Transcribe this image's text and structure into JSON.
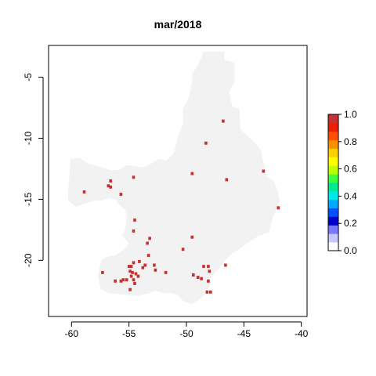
{
  "chart_data": {
    "type": "heatmap",
    "title": "mar/2018",
    "xlabel": "",
    "ylabel": "",
    "xlim": [
      -62,
      -39.5
    ],
    "ylim": [
      -24.6,
      -2.4
    ],
    "x_ticks": [
      -60,
      -55,
      -50,
      -45,
      -40
    ],
    "y_ticks": [
      -5,
      -10,
      -15,
      -20
    ],
    "land_color": "#f2f2f2",
    "legend": {
      "placement": "right",
      "range": [
        0.0,
        1.0
      ],
      "ticks": [
        "0.0",
        "0.2",
        "0.4",
        "0.6",
        "0.8",
        "1.0"
      ],
      "colors": [
        "#ffffff",
        "#c8c8ff",
        "#7a7aff",
        "#0000c8",
        "#0050ff",
        "#00aaff",
        "#00e8e8",
        "#00e890",
        "#40ff40",
        "#c0ff00",
        "#ffff00",
        "#ffd000",
        "#ff9000",
        "#ff5000",
        "#e82000",
        "#c83030"
      ]
    },
    "grid": false,
    "region_outline": [
      [
        -48.5,
        -2.9
      ],
      [
        -46.7,
        -2.9
      ],
      [
        -46.7,
        -3.6
      ],
      [
        -45.8,
        -3.8
      ],
      [
        -45.8,
        -5.4
      ],
      [
        -46.3,
        -6.2
      ],
      [
        -46.0,
        -7.4
      ],
      [
        -45.4,
        -7.6
      ],
      [
        -45.3,
        -9.3
      ],
      [
        -44.2,
        -10.2
      ],
      [
        -43.5,
        -11.0
      ],
      [
        -43.3,
        -12.0
      ],
      [
        -43.0,
        -13.2
      ],
      [
        -42.4,
        -13.5
      ],
      [
        -42.1,
        -14.2
      ],
      [
        -41.9,
        -15.0
      ],
      [
        -42.2,
        -15.9
      ],
      [
        -42.5,
        -16.5
      ],
      [
        -42.8,
        -17.7
      ],
      [
        -43.7,
        -18.0
      ],
      [
        -44.4,
        -18.4
      ],
      [
        -45.3,
        -19.0
      ],
      [
        -46.1,
        -19.5
      ],
      [
        -46.6,
        -20.0
      ],
      [
        -47.0,
        -20.5
      ],
      [
        -47.5,
        -21.0
      ],
      [
        -47.9,
        -21.5
      ],
      [
        -48.0,
        -22.2
      ],
      [
        -48.4,
        -22.8
      ],
      [
        -49.0,
        -23.3
      ],
      [
        -49.5,
        -23.6
      ],
      [
        -50.2,
        -23.4
      ],
      [
        -50.7,
        -22.9
      ],
      [
        -51.2,
        -22.7
      ],
      [
        -51.9,
        -22.7
      ],
      [
        -52.7,
        -22.5
      ],
      [
        -53.2,
        -22.7
      ],
      [
        -54.4,
        -22.9
      ],
      [
        -55.5,
        -22.8
      ],
      [
        -56.8,
        -22.7
      ],
      [
        -57.5,
        -22.3
      ],
      [
        -57.7,
        -21.2
      ],
      [
        -57.4,
        -20.0
      ],
      [
        -56.9,
        -19.7
      ],
      [
        -56.2,
        -19.6
      ],
      [
        -55.3,
        -19.0
      ],
      [
        -55.0,
        -18.6
      ],
      [
        -55.6,
        -18.0
      ],
      [
        -55.3,
        -17.4
      ],
      [
        -55.2,
        -16.4
      ],
      [
        -55.3,
        -15.9
      ],
      [
        -55.8,
        -15.5
      ],
      [
        -56.1,
        -15.1
      ],
      [
        -56.6,
        -14.9
      ],
      [
        -57.3,
        -15.1
      ],
      [
        -58.0,
        -15.1
      ],
      [
        -58.7,
        -15.3
      ],
      [
        -59.6,
        -15.6
      ],
      [
        -60.3,
        -15.1
      ],
      [
        -60.3,
        -14.5
      ],
      [
        -60.2,
        -13.3
      ],
      [
        -60.1,
        -11.7
      ],
      [
        -59.3,
        -11.6
      ],
      [
        -58.5,
        -12.1
      ],
      [
        -57.6,
        -12.3
      ],
      [
        -56.6,
        -12.6
      ],
      [
        -55.8,
        -12.6
      ],
      [
        -55.3,
        -12.2
      ],
      [
        -54.5,
        -12.3
      ],
      [
        -53.8,
        -12.4
      ],
      [
        -53.1,
        -12.1
      ],
      [
        -52.4,
        -11.7
      ],
      [
        -51.7,
        -11.8
      ],
      [
        -51.1,
        -11.2
      ],
      [
        -50.7,
        -9.8
      ],
      [
        -50.3,
        -8.8
      ],
      [
        -50.3,
        -7.6
      ],
      [
        -49.9,
        -6.9
      ],
      [
        -49.7,
        -6.3
      ],
      [
        -49.5,
        -5.4
      ],
      [
        -49.5,
        -4.8
      ],
      [
        -48.9,
        -3.8
      ]
    ],
    "points": [
      [
        -46.8,
        -8.6
      ],
      [
        -48.3,
        -10.4
      ],
      [
        -49.5,
        -12.9
      ],
      [
        -43.3,
        -12.7
      ],
      [
        -46.5,
        -13.4
      ],
      [
        -42.0,
        -15.7
      ],
      [
        -58.9,
        -14.4
      ],
      [
        -56.8,
        -13.9
      ],
      [
        -56.6,
        -13.5
      ],
      [
        -56.6,
        -14.0
      ],
      [
        -54.6,
        -13.2
      ],
      [
        -55.7,
        -14.6
      ],
      [
        -54.5,
        -16.7
      ],
      [
        -54.6,
        -17.6
      ],
      [
        -49.5,
        -18.1
      ],
      [
        -53.2,
        -18.2
      ],
      [
        -53.4,
        -18.6
      ],
      [
        -50.3,
        -19.1
      ],
      [
        -53.3,
        -19.6
      ],
      [
        -54.1,
        -20.1
      ],
      [
        -54.6,
        -20.2
      ],
      [
        -53.8,
        -20.6
      ],
      [
        -53.6,
        -20.4
      ],
      [
        -52.8,
        -20.4
      ],
      [
        -52.7,
        -20.8
      ],
      [
        -51.8,
        -21.0
      ],
      [
        -55.0,
        -20.5
      ],
      [
        -54.8,
        -20.5
      ],
      [
        -54.9,
        -20.9
      ],
      [
        -54.7,
        -21.0
      ],
      [
        -54.4,
        -21.1
      ],
      [
        -54.2,
        -21.3
      ],
      [
        -54.8,
        -21.3
      ],
      [
        -54.6,
        -21.6
      ],
      [
        -54.5,
        -21.9
      ],
      [
        -55.2,
        -21.6
      ],
      [
        -55.5,
        -21.6
      ],
      [
        -55.7,
        -21.7
      ],
      [
        -56.2,
        -21.7
      ],
      [
        -57.3,
        -21.0
      ],
      [
        -54.9,
        -22.4
      ],
      [
        -49.4,
        -21.2
      ],
      [
        -49.0,
        -21.4
      ],
      [
        -48.7,
        -21.5
      ],
      [
        -48.1,
        -21.7
      ],
      [
        -48.5,
        -20.5
      ],
      [
        -48.1,
        -20.5
      ],
      [
        -48.0,
        -20.9
      ],
      [
        -46.6,
        -20.4
      ],
      [
        -48.2,
        -22.6
      ],
      [
        -47.9,
        -22.6
      ]
    ]
  }
}
